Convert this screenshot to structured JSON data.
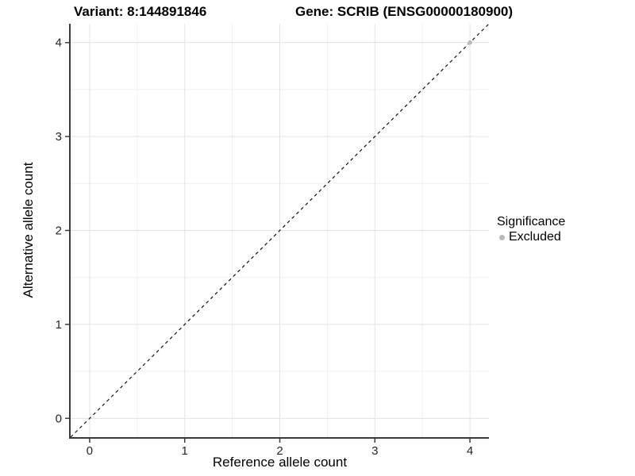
{
  "header": {
    "variant_title": "Variant: 8:144891846",
    "gene_title": "Gene: SCRIB (ENSG00000180900)"
  },
  "axes": {
    "x_label": "Reference allele count",
    "y_label": "Alternative allele count"
  },
  "legend": {
    "title": "Significance",
    "entries": [
      {
        "label": "Excluded",
        "color": "#b9b9b9"
      }
    ]
  },
  "chart_data": {
    "type": "scatter",
    "title": "Variant: 8:144891846 / Gene: SCRIB (ENSG00000180900)",
    "xlabel": "Reference allele count",
    "ylabel": "Alternative allele count",
    "xlim": [
      -0.2,
      4.2
    ],
    "ylim": [
      -0.2,
      4.2
    ],
    "x_ticks": [
      0,
      1,
      2,
      3,
      4
    ],
    "y_ticks": [
      0,
      1,
      2,
      3,
      4
    ],
    "x_minor_ticks": [
      0.5,
      1.5,
      2.5,
      3.5
    ],
    "y_minor_ticks": [
      0.5,
      1.5,
      2.5,
      3.5
    ],
    "grid": "major+minor",
    "legend_position": "right",
    "legend_title": "Significance",
    "reference_line": {
      "kind": "identity",
      "slope": 1,
      "intercept": 0,
      "style": "dashed",
      "color": "#111111"
    },
    "series": [
      {
        "name": "Excluded",
        "color": "#b9b9b9",
        "marker": "circle",
        "points": [
          {
            "x": 4,
            "y": 4
          }
        ]
      }
    ],
    "colors": {
      "grid_major": "#e3e3e3",
      "grid_minor": "#efefef",
      "axis_line": "#3a3a3a",
      "tick_text": "#262626",
      "background": "#ffffff"
    }
  }
}
